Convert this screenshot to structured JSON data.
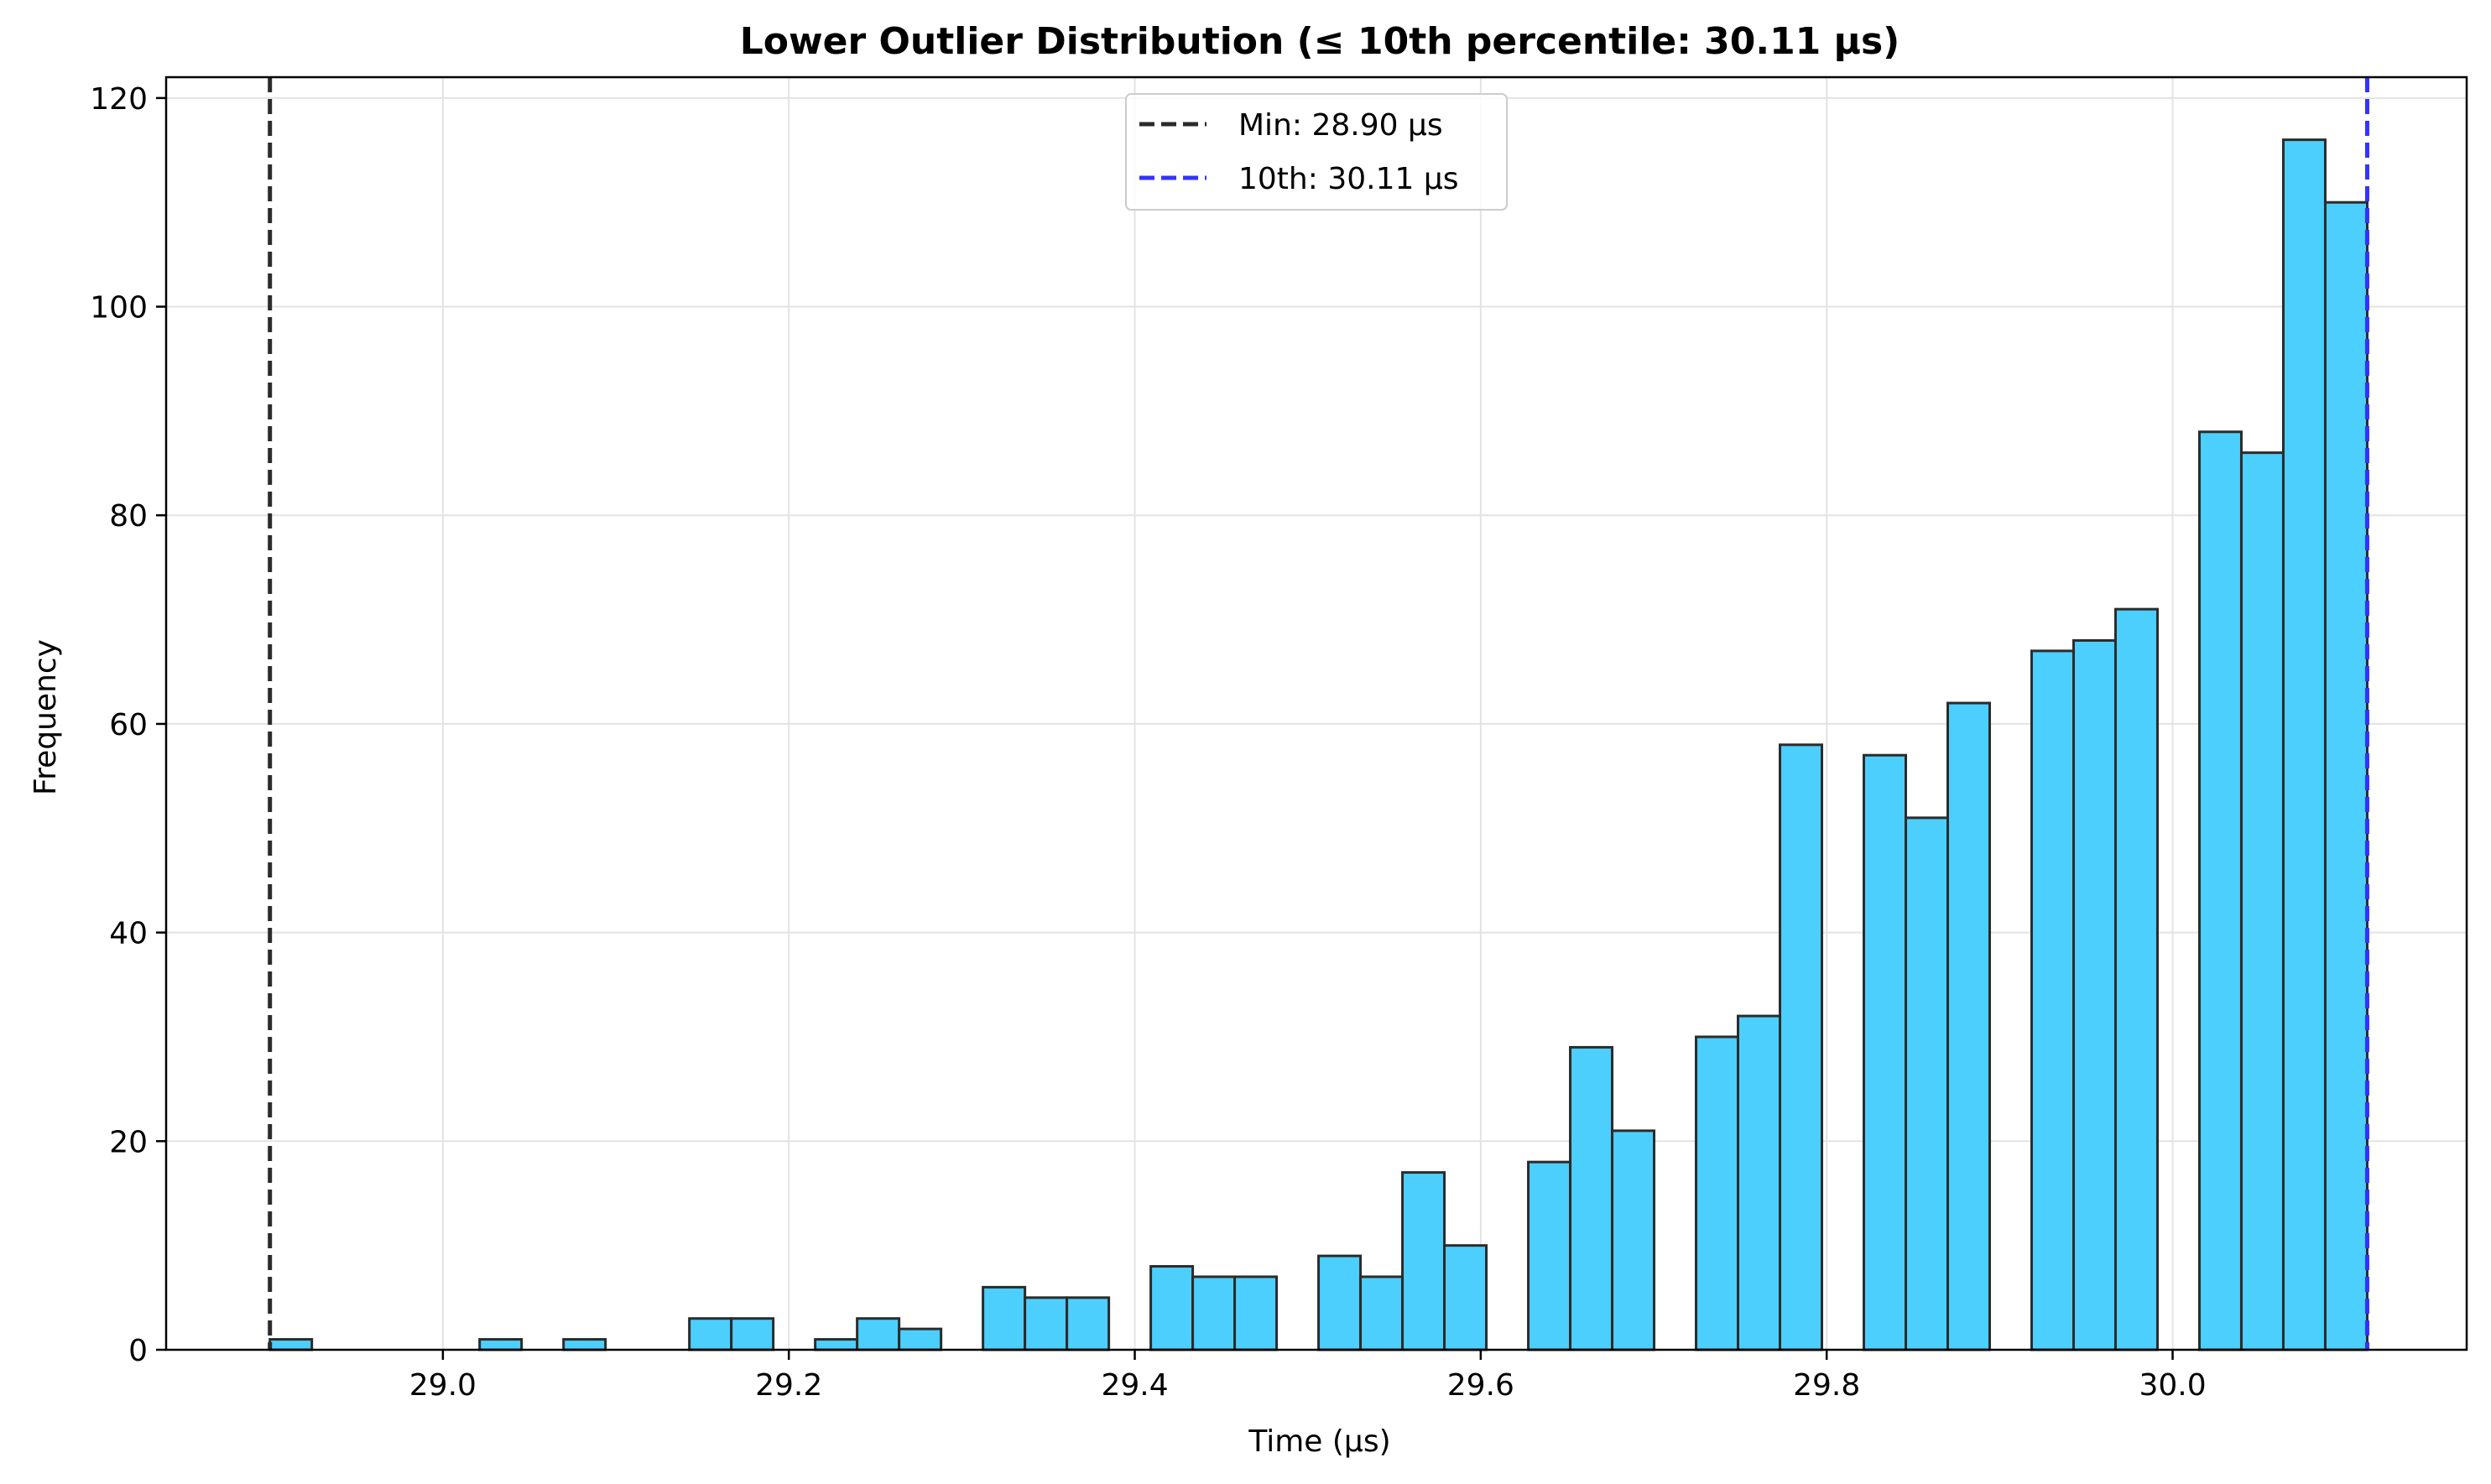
{
  "chart_data": {
    "type": "bar",
    "title": "Lower Outlier Distribution (≤ 10th percentile: 30.11 µs)",
    "xlabel": "Time (µs)",
    "ylabel": "Frequency",
    "xlim": [
      28.84,
      30.17
    ],
    "ylim": [
      0,
      122
    ],
    "xticks": [
      "29.0",
      "29.2",
      "29.4",
      "29.6",
      "29.8",
      "30.0"
    ],
    "xtick_values": [
      29.0,
      29.2,
      29.4,
      29.6,
      29.8,
      30.0
    ],
    "yticks": [
      "0",
      "20",
      "40",
      "60",
      "80",
      "100",
      "120"
    ],
    "ytick_values": [
      0,
      20,
      40,
      60,
      80,
      100,
      120
    ],
    "grid": true,
    "legend_position": "top-center",
    "bin_start": 28.9,
    "bin_width": 0.02425,
    "values": [
      1,
      0,
      0,
      0,
      0,
      1,
      0,
      1,
      0,
      0,
      3,
      3,
      0,
      1,
      3,
      2,
      0,
      6,
      5,
      5,
      0,
      8,
      7,
      7,
      0,
      9,
      7,
      17,
      10,
      0,
      18,
      29,
      21,
      0,
      30,
      32,
      58,
      0,
      57,
      51,
      62,
      0,
      67,
      68,
      71,
      0,
      88,
      86,
      116,
      110
    ],
    "bar_color": "#4ccffc",
    "edge_color": "#2b2b2b",
    "reference_lines": [
      {
        "label": "Min: 28.90 µs",
        "x": 28.9,
        "color": "#2b2b2b"
      },
      {
        "label": "10th: 30.11 µs",
        "x": 30.1125,
        "color": "#3333ff"
      }
    ]
  }
}
